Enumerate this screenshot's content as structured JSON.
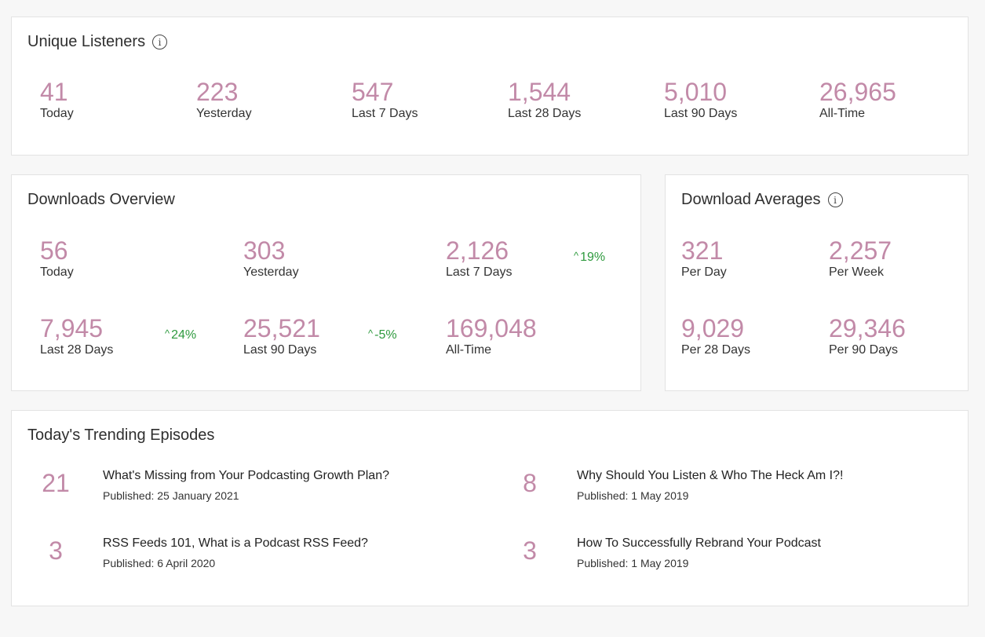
{
  "unique_listeners": {
    "title": "Unique Listeners",
    "stats": [
      {
        "value": "41",
        "label": "Today"
      },
      {
        "value": "223",
        "label": "Yesterday"
      },
      {
        "value": "547",
        "label": "Last 7 Days"
      },
      {
        "value": "1,544",
        "label": "Last 28 Days"
      },
      {
        "value": "5,010",
        "label": "Last 90 Days"
      },
      {
        "value": "26,965",
        "label": "All-Time"
      }
    ]
  },
  "downloads_overview": {
    "title": "Downloads Overview",
    "stats": [
      {
        "value": "56",
        "label": "Today"
      },
      {
        "value": "303",
        "label": "Yesterday"
      },
      {
        "value": "2,126",
        "label": "Last 7 Days",
        "delta": "19%"
      },
      {
        "value": "7,945",
        "label": "Last 28 Days",
        "delta": "24%"
      },
      {
        "value": "25,521",
        "label": "Last 90 Days",
        "delta": "-5%"
      },
      {
        "value": "169,048",
        "label": "All-Time"
      }
    ]
  },
  "download_averages": {
    "title": "Download Averages",
    "stats": [
      {
        "value": "321",
        "label": "Per Day"
      },
      {
        "value": "2,257",
        "label": "Per Week"
      },
      {
        "value": "9,029",
        "label": "Per 28 Days"
      },
      {
        "value": "29,346",
        "label": "Per 90 Days"
      }
    ]
  },
  "trending": {
    "title": "Today's Trending Episodes",
    "episodes": [
      {
        "count": "21",
        "title": "What's Missing from Your Podcasting Growth Plan?",
        "published": "Published: 25 January 2021"
      },
      {
        "count": "8",
        "title": "Why Should You Listen & Who The Heck Am I?!",
        "published": "Published: 1 May 2019"
      },
      {
        "count": "3",
        "title": "RSS Feeds 101, What is a Podcast RSS Feed?",
        "published": "Published: 6 April 2020"
      },
      {
        "count": "3",
        "title": "How To Successfully Rebrand Your Podcast",
        "published": "Published: 1 May 2019"
      }
    ]
  },
  "colors": {
    "accent": "#c28aa8",
    "positive": "#2e9a3e",
    "background": "#f7f7f7"
  }
}
